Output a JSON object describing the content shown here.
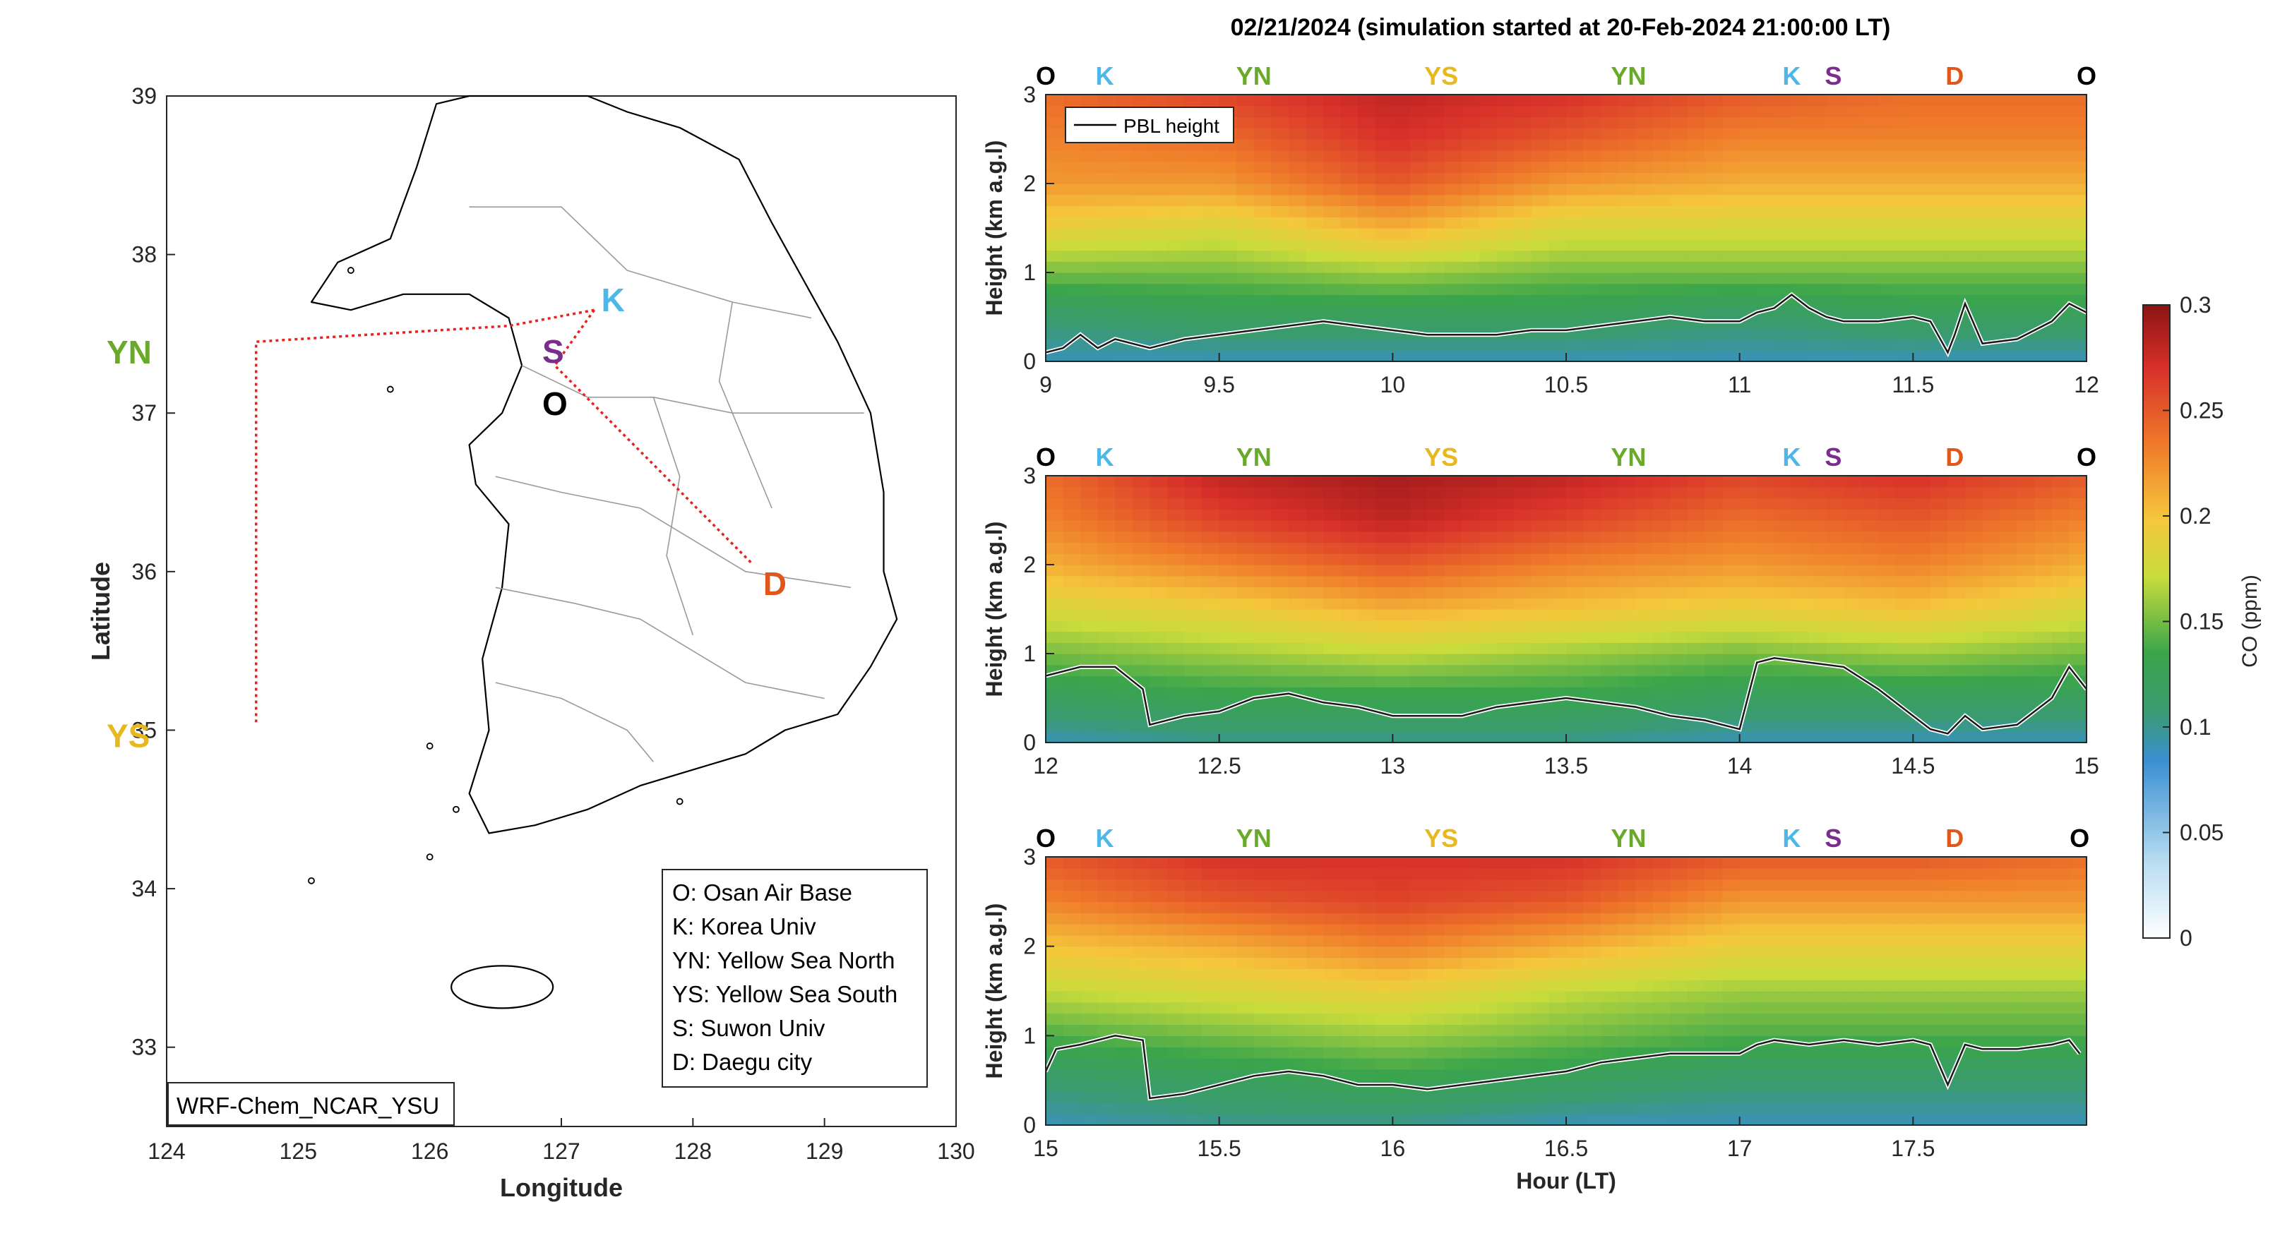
{
  "figure": {
    "title": "02/21/2024 (simulation started at 20-Feb-2024 21:00:00 LT)"
  },
  "map": {
    "xlabel": "Longitude",
    "ylabel": "Latitude",
    "xticks": [
      "124",
      "125",
      "126",
      "127",
      "128",
      "129",
      "130"
    ],
    "yticks": [
      "33",
      "34",
      "35",
      "36",
      "37",
      "38",
      "39"
    ],
    "xlim": [
      124,
      130
    ],
    "ylim": [
      32.5,
      39
    ],
    "model_label": "WRF-Chem_NCAR_YSU",
    "route_color": "#e8231e",
    "sites": [
      {
        "code": "K",
        "lon": 127.25,
        "lat": 37.65,
        "color": "#4db8e8"
      },
      {
        "code": "S",
        "lon": 126.93,
        "lat": 37.38,
        "color": "#7b2d8e"
      },
      {
        "code": "O",
        "lon": 126.93,
        "lat": 37.05,
        "color": "#000000"
      },
      {
        "code": "YN",
        "lon": 124.0,
        "lat": 37.42,
        "color": "#6aaa2a"
      },
      {
        "code": "YS",
        "lon": 124.0,
        "lat": 35.0,
        "color": "#e8b820"
      },
      {
        "code": "D",
        "lon": 128.48,
        "lat": 35.95,
        "color": "#e0571c"
      }
    ],
    "legend": [
      "O: Osan Air Base",
      "K: Korea Univ",
      "YN: Yellow Sea North",
      "YS: Yellow Sea South",
      "S: Suwon Univ",
      "D: Daegu city"
    ]
  },
  "colorbar": {
    "label": "CO (ppm)",
    "ticks": [
      "0",
      "0.05",
      "0.1",
      "0.15",
      "0.2",
      "0.25",
      "0.3"
    ],
    "range": [
      0,
      0.3
    ],
    "colors": [
      "#ffffff",
      "#9fd3f0",
      "#3a8fd0",
      "#3aa54a",
      "#c8dc3c",
      "#f5c83c",
      "#ef7a2a",
      "#d8302a",
      "#8c1414"
    ]
  },
  "chart_data": [
    {
      "type": "heatmap",
      "xlabel": "",
      "ylabel": "Height (km a.g.l)",
      "xlim": [
        9,
        12
      ],
      "ylim": [
        0,
        3
      ],
      "xticks": [
        "9",
        "9.5",
        "10",
        "10.5",
        "11",
        "11.5",
        "12"
      ],
      "yticks": [
        "0",
        "1",
        "2",
        "3"
      ],
      "legend": "PBL height",
      "site_labels": [
        {
          "code": "O",
          "hour": 9.0
        },
        {
          "code": "K",
          "hour": 9.17
        },
        {
          "code": "YN",
          "hour": 9.6
        },
        {
          "code": "YS",
          "hour": 10.14
        },
        {
          "code": "YN",
          "hour": 10.68
        },
        {
          "code": "K",
          "hour": 11.15
        },
        {
          "code": "S",
          "hour": 11.27
        },
        {
          "code": "D",
          "hour": 11.62
        },
        {
          "code": "O",
          "hour": 12.0
        }
      ],
      "pbl_height": {
        "hours": [
          9.0,
          9.05,
          9.1,
          9.15,
          9.2,
          9.3,
          9.4,
          9.5,
          9.6,
          9.7,
          9.8,
          9.9,
          10.0,
          10.1,
          10.2,
          10.3,
          10.4,
          10.5,
          10.6,
          10.7,
          10.8,
          10.9,
          11.0,
          11.05,
          11.1,
          11.15,
          11.2,
          11.25,
          11.3,
          11.4,
          11.5,
          11.55,
          11.6,
          11.62,
          11.65,
          11.7,
          11.8,
          11.9,
          11.95,
          12.0
        ],
        "km": [
          0.1,
          0.15,
          0.3,
          0.15,
          0.25,
          0.15,
          0.25,
          0.3,
          0.35,
          0.4,
          0.45,
          0.4,
          0.35,
          0.3,
          0.3,
          0.3,
          0.35,
          0.35,
          0.4,
          0.45,
          0.5,
          0.45,
          0.45,
          0.55,
          0.6,
          0.75,
          0.6,
          0.5,
          0.45,
          0.45,
          0.5,
          0.45,
          0.1,
          0.3,
          0.65,
          0.2,
          0.25,
          0.45,
          0.65,
          0.55
        ]
      },
      "co_ppm_profile": {
        "levels_km": [
          0.0,
          0.5,
          1.0,
          1.5,
          2.0,
          2.5,
          3.0
        ],
        "series": [
          {
            "hour": 9.0,
            "values": [
              0.09,
              0.11,
              0.15,
              0.19,
              0.22,
              0.23,
              0.24
            ]
          },
          {
            "hour": 9.5,
            "values": [
              0.09,
              0.12,
              0.15,
              0.18,
              0.22,
              0.24,
              0.26
            ]
          },
          {
            "hour": 10.0,
            "values": [
              0.09,
              0.12,
              0.16,
              0.21,
              0.25,
              0.27,
              0.28
            ]
          },
          {
            "hour": 10.5,
            "values": [
              0.09,
              0.12,
              0.15,
              0.18,
              0.22,
              0.25,
              0.27
            ]
          },
          {
            "hour": 11.0,
            "values": [
              0.09,
              0.11,
              0.15,
              0.18,
              0.21,
              0.23,
              0.25
            ]
          },
          {
            "hour": 11.5,
            "values": [
              0.09,
              0.12,
              0.15,
              0.18,
              0.21,
              0.23,
              0.24
            ]
          },
          {
            "hour": 12.0,
            "values": [
              0.09,
              0.12,
              0.15,
              0.18,
              0.21,
              0.23,
              0.24
            ]
          }
        ]
      }
    },
    {
      "type": "heatmap",
      "xlabel": "",
      "ylabel": "Height (km a.g.l)",
      "xlim": [
        12,
        15
      ],
      "ylim": [
        0,
        3
      ],
      "xticks": [
        "12",
        "12.5",
        "13",
        "13.5",
        "14",
        "14.5",
        "15"
      ],
      "yticks": [
        "0",
        "1",
        "2",
        "3"
      ],
      "site_labels": [
        {
          "code": "O",
          "hour": 12.0
        },
        {
          "code": "K",
          "hour": 12.17
        },
        {
          "code": "YN",
          "hour": 12.6
        },
        {
          "code": "YS",
          "hour": 13.14
        },
        {
          "code": "YN",
          "hour": 13.68
        },
        {
          "code": "K",
          "hour": 14.15
        },
        {
          "code": "S",
          "hour": 14.27
        },
        {
          "code": "D",
          "hour": 14.62
        },
        {
          "code": "O",
          "hour": 15.0
        }
      ],
      "pbl_height": {
        "hours": [
          12.0,
          12.05,
          12.1,
          12.2,
          12.28,
          12.3,
          12.4,
          12.5,
          12.6,
          12.7,
          12.8,
          12.9,
          13.0,
          13.1,
          13.2,
          13.3,
          13.4,
          13.5,
          13.6,
          13.7,
          13.8,
          13.9,
          13.95,
          14.0,
          14.05,
          14.1,
          14.2,
          14.3,
          14.4,
          14.5,
          14.55,
          14.6,
          14.65,
          14.7,
          14.8,
          14.9,
          14.95,
          15.0
        ],
        "km": [
          0.75,
          0.8,
          0.85,
          0.85,
          0.6,
          0.2,
          0.3,
          0.35,
          0.5,
          0.55,
          0.45,
          0.4,
          0.3,
          0.3,
          0.3,
          0.4,
          0.45,
          0.5,
          0.45,
          0.4,
          0.3,
          0.25,
          0.2,
          0.15,
          0.9,
          0.95,
          0.9,
          0.85,
          0.6,
          0.3,
          0.15,
          0.1,
          0.3,
          0.15,
          0.2,
          0.5,
          0.85,
          0.6
        ]
      },
      "co_ppm_profile": {
        "levels_km": [
          0.0,
          0.5,
          1.0,
          1.5,
          2.0,
          2.5,
          3.0
        ],
        "series": [
          {
            "hour": 12.0,
            "values": [
              0.09,
              0.12,
              0.15,
              0.18,
              0.21,
              0.23,
              0.24
            ]
          },
          {
            "hour": 12.5,
            "values": [
              0.1,
              0.13,
              0.16,
              0.19,
              0.23,
              0.26,
              0.28
            ]
          },
          {
            "hour": 13.0,
            "values": [
              0.1,
              0.13,
              0.17,
              0.21,
              0.25,
              0.28,
              0.29
            ]
          },
          {
            "hour": 13.5,
            "values": [
              0.1,
              0.13,
              0.16,
              0.2,
              0.23,
              0.26,
              0.28
            ]
          },
          {
            "hour": 14.0,
            "values": [
              0.09,
              0.12,
              0.15,
              0.19,
              0.22,
              0.24,
              0.26
            ]
          },
          {
            "hour": 14.5,
            "values": [
              0.09,
              0.12,
              0.16,
              0.2,
              0.23,
              0.25,
              0.27
            ]
          },
          {
            "hour": 15.0,
            "values": [
              0.09,
              0.12,
              0.15,
              0.18,
              0.21,
              0.23,
              0.25
            ]
          }
        ]
      }
    },
    {
      "type": "heatmap",
      "xlabel": "Hour (LT)",
      "ylabel": "Height (km a.g.l)",
      "xlim": [
        15,
        18
      ],
      "ylim": [
        0,
        3
      ],
      "xticks": [
        "15",
        "15.5",
        "16",
        "16.5",
        "17",
        "17.5"
      ],
      "yticks": [
        "0",
        "1",
        "2",
        "3"
      ],
      "site_labels": [
        {
          "code": "O",
          "hour": 15.0
        },
        {
          "code": "K",
          "hour": 15.17
        },
        {
          "code": "YN",
          "hour": 15.6
        },
        {
          "code": "YS",
          "hour": 16.14
        },
        {
          "code": "YN",
          "hour": 16.68
        },
        {
          "code": "K",
          "hour": 17.15
        },
        {
          "code": "S",
          "hour": 17.27
        },
        {
          "code": "D",
          "hour": 17.62
        },
        {
          "code": "O",
          "hour": 17.98
        }
      ],
      "pbl_height": {
        "hours": [
          15.0,
          15.03,
          15.1,
          15.2,
          15.28,
          15.3,
          15.4,
          15.5,
          15.6,
          15.7,
          15.8,
          15.9,
          16.0,
          16.1,
          16.2,
          16.3,
          16.4,
          16.5,
          16.6,
          16.7,
          16.8,
          16.9,
          17.0,
          17.05,
          17.1,
          17.2,
          17.3,
          17.4,
          17.5,
          17.55,
          17.6,
          17.65,
          17.7,
          17.8,
          17.9,
          17.95,
          17.98
        ],
        "km": [
          0.6,
          0.85,
          0.9,
          1.0,
          0.95,
          0.3,
          0.35,
          0.45,
          0.55,
          0.6,
          0.55,
          0.45,
          0.45,
          0.4,
          0.45,
          0.5,
          0.55,
          0.6,
          0.7,
          0.75,
          0.8,
          0.8,
          0.8,
          0.9,
          0.95,
          0.9,
          0.95,
          0.9,
          0.95,
          0.9,
          0.45,
          0.9,
          0.85,
          0.85,
          0.9,
          0.95,
          0.8
        ]
      },
      "co_ppm_profile": {
        "levels_km": [
          0.0,
          0.5,
          1.0,
          1.5,
          2.0,
          2.5,
          3.0
        ],
        "series": [
          {
            "hour": 15.0,
            "values": [
              0.09,
              0.11,
              0.14,
              0.17,
              0.2,
              0.23,
              0.25
            ]
          },
          {
            "hour": 15.5,
            "values": [
              0.1,
              0.12,
              0.15,
              0.18,
              0.21,
              0.25,
              0.27
            ]
          },
          {
            "hour": 16.0,
            "values": [
              0.1,
              0.13,
              0.16,
              0.19,
              0.23,
              0.26,
              0.27
            ]
          },
          {
            "hour": 16.5,
            "values": [
              0.09,
              0.12,
              0.15,
              0.17,
              0.21,
              0.25,
              0.27
            ]
          },
          {
            "hour": 17.0,
            "values": [
              0.09,
              0.11,
              0.14,
              0.16,
              0.19,
              0.22,
              0.25
            ]
          },
          {
            "hour": 17.5,
            "values": [
              0.09,
              0.11,
              0.14,
              0.16,
              0.19,
              0.22,
              0.25
            ]
          },
          {
            "hour": 18.0,
            "values": [
              0.09,
              0.11,
              0.14,
              0.16,
              0.19,
              0.22,
              0.24
            ]
          }
        ]
      }
    }
  ]
}
